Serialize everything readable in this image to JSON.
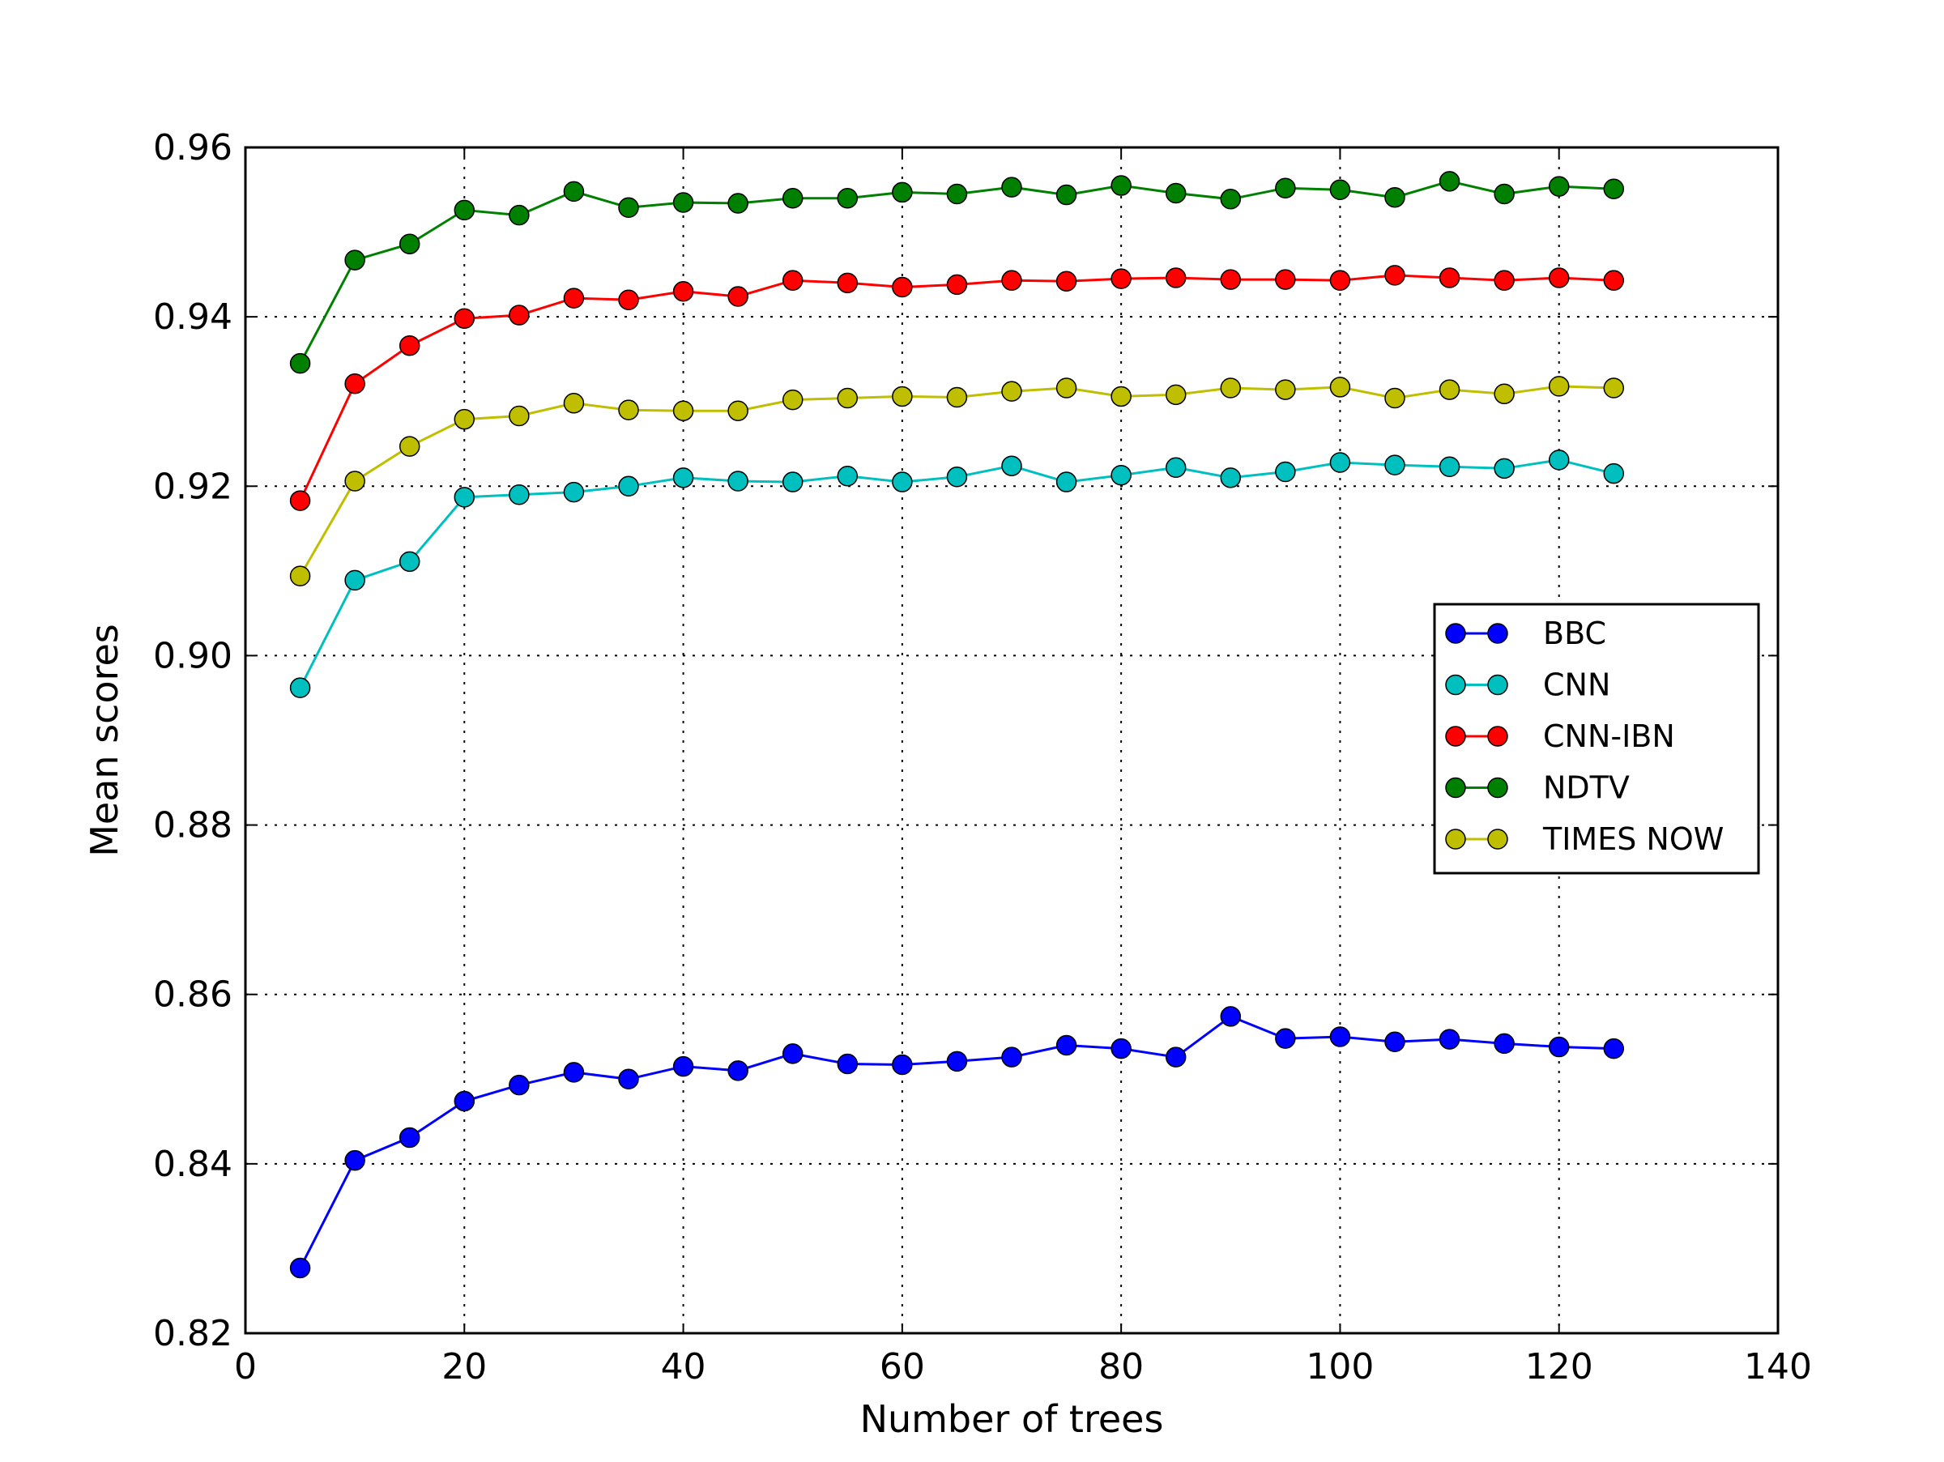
{
  "chart_data": {
    "type": "line",
    "title": "",
    "xlabel": "Number of trees",
    "ylabel": "Mean scores",
    "xlim": [
      0,
      140
    ],
    "ylim": [
      0.82,
      0.96
    ],
    "xticks": [
      0,
      20,
      40,
      60,
      80,
      100,
      120,
      140
    ],
    "yticks": [
      0.82,
      0.84,
      0.86,
      0.88,
      0.9,
      0.92,
      0.94,
      0.96
    ],
    "xtick_labels": [
      "0",
      "20",
      "40",
      "60",
      "80",
      "100",
      "120",
      "140"
    ],
    "ytick_labels": [
      "0.82",
      "0.84",
      "0.86",
      "0.88",
      "0.90",
      "0.92",
      "0.94",
      "0.96"
    ],
    "grid": true,
    "legend_position": "right",
    "x": [
      5,
      10,
      15,
      20,
      25,
      30,
      35,
      40,
      45,
      50,
      55,
      60,
      65,
      70,
      75,
      80,
      85,
      90,
      95,
      100,
      105,
      110,
      115,
      120,
      125
    ],
    "series": [
      {
        "name": "BBC",
        "color": "#0000ff",
        "values": [
          0.8277,
          0.8404,
          0.8431,
          0.8474,
          0.8493,
          0.8508,
          0.85,
          0.8515,
          0.851,
          0.853,
          0.8518,
          0.8517,
          0.8521,
          0.8526,
          0.854,
          0.8536,
          0.8526,
          0.8574,
          0.8548,
          0.855,
          0.8544,
          0.8547,
          0.8542,
          0.8538,
          0.8536
        ]
      },
      {
        "name": "CNN",
        "color": "#00bfbf",
        "values": [
          0.8962,
          0.9089,
          0.9111,
          0.9187,
          0.919,
          0.9193,
          0.92,
          0.921,
          0.9206,
          0.9205,
          0.9212,
          0.9205,
          0.9211,
          0.9224,
          0.9205,
          0.9213,
          0.9222,
          0.921,
          0.9217,
          0.9228,
          0.9225,
          0.9223,
          0.9221,
          0.9231,
          0.9215
        ]
      },
      {
        "name": "CNN-IBN",
        "color": "#ff0000",
        "values": [
          0.9183,
          0.9321,
          0.9366,
          0.9398,
          0.9402,
          0.9422,
          0.942,
          0.943,
          0.9424,
          0.9443,
          0.944,
          0.9435,
          0.9438,
          0.9443,
          0.9442,
          0.9445,
          0.9446,
          0.9444,
          0.9444,
          0.9443,
          0.9449,
          0.9446,
          0.9443,
          0.9446,
          0.9443
        ]
      },
      {
        "name": "NDTV",
        "color": "#008000",
        "values": [
          0.9345,
          0.9467,
          0.9486,
          0.9526,
          0.952,
          0.9548,
          0.9529,
          0.9535,
          0.9534,
          0.954,
          0.954,
          0.9547,
          0.9545,
          0.9553,
          0.9544,
          0.9555,
          0.9546,
          0.9539,
          0.9552,
          0.955,
          0.9541,
          0.956,
          0.9545,
          0.9554,
          0.9551
        ]
      },
      {
        "name": "TIMES NOW",
        "color": "#bfbf00",
        "values": [
          0.9094,
          0.9206,
          0.9247,
          0.9279,
          0.9283,
          0.9298,
          0.929,
          0.9289,
          0.9289,
          0.9302,
          0.9304,
          0.9306,
          0.9305,
          0.9312,
          0.9316,
          0.9306,
          0.9308,
          0.9316,
          0.9314,
          0.9317,
          0.9304,
          0.9314,
          0.9309,
          0.9318,
          0.9316
        ]
      }
    ]
  }
}
